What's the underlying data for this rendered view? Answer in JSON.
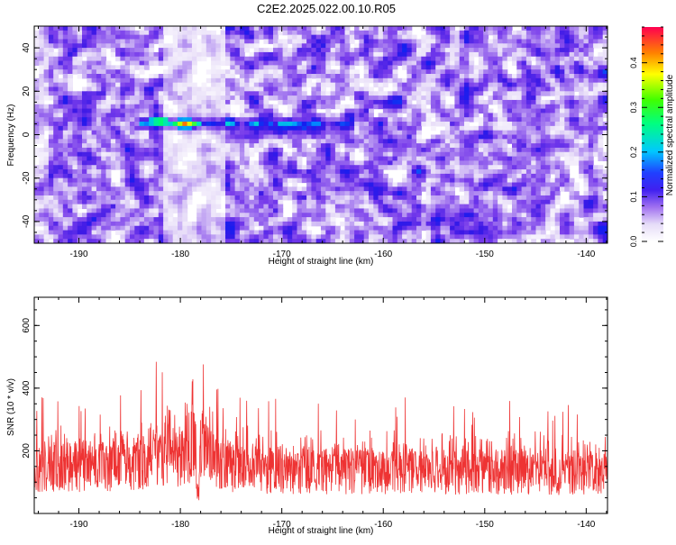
{
  "figure": {
    "title": "C2E2.2025.022.00.10.R05"
  },
  "chart_data": [
    {
      "type": "heatmap",
      "xlabel": "Height of straight line (km)",
      "ylabel": "Frequency (Hz)",
      "xlim": [
        -194.4,
        -137.9
      ],
      "ylim": [
        -50,
        50
      ],
      "xticks": [
        -190,
        -180,
        -170,
        -160,
        -150,
        -140
      ],
      "yticks": [
        -40,
        -20,
        0,
        20,
        40
      ],
      "z_range": [
        0.0,
        0.48
      ],
      "colorbar": {
        "label": "Normalized spectral amplitude",
        "ticks": [
          0.0,
          0.1,
          0.2,
          0.3,
          0.4
        ],
        "colors": [
          "#ffffff",
          "#c9b3f0",
          "#8a3ff0",
          "#2a10e8",
          "#00c8ff",
          "#00ff60",
          "#ffff00",
          "#ff2040"
        ]
      },
      "features": [
        {
          "x_range": [
            -184,
            -163
          ],
          "frequency": 5,
          "peak_x": -179.5,
          "peak_amplitude": 0.46
        }
      ],
      "grid": false
    },
    {
      "type": "line",
      "xlabel": "Height of straight line (km)",
      "ylabel": "SNR (10 * v/v)",
      "xlim": [
        -194.4,
        -137.9
      ],
      "ylim": [
        0,
        690
      ],
      "xticks": [
        -190,
        -180,
        -170,
        -160,
        -150,
        -140
      ],
      "yticks": [
        200,
        400,
        600
      ],
      "series": [
        {
          "color": "#ee3333",
          "x": [
            -194,
            -192,
            -190,
            -188,
            -186,
            -184,
            -182.5,
            -181.5,
            -180,
            -179,
            -178.8,
            -178.5,
            -178,
            -177,
            -176,
            -175,
            -174,
            -172,
            -170,
            -168,
            -166,
            -164,
            -162,
            -160,
            -158,
            -156,
            -154,
            -152,
            -150,
            -148,
            -146,
            -144,
            -142,
            -140,
            -138
          ],
          "baseline": [
            145,
            150,
            150,
            150,
            150,
            160,
            180,
            190,
            185,
            215,
            230,
            220,
            200,
            180,
            160,
            150,
            140,
            140,
            138,
            138,
            136,
            136,
            135,
            135,
            135,
            133,
            133,
            133,
            132,
            132,
            132,
            132,
            130,
            130,
            130
          ],
          "peak": [
            370,
            380,
            345,
            360,
            380,
            410,
            495,
            520,
            420,
            630,
            680,
            650,
            560,
            470,
            425,
            360,
            380,
            400,
            365,
            370,
            370,
            360,
            365,
            370,
            375,
            365,
            360,
            350,
            330,
            360,
            360,
            360,
            350,
            330,
            330
          ]
        }
      ],
      "grid": false
    }
  ]
}
